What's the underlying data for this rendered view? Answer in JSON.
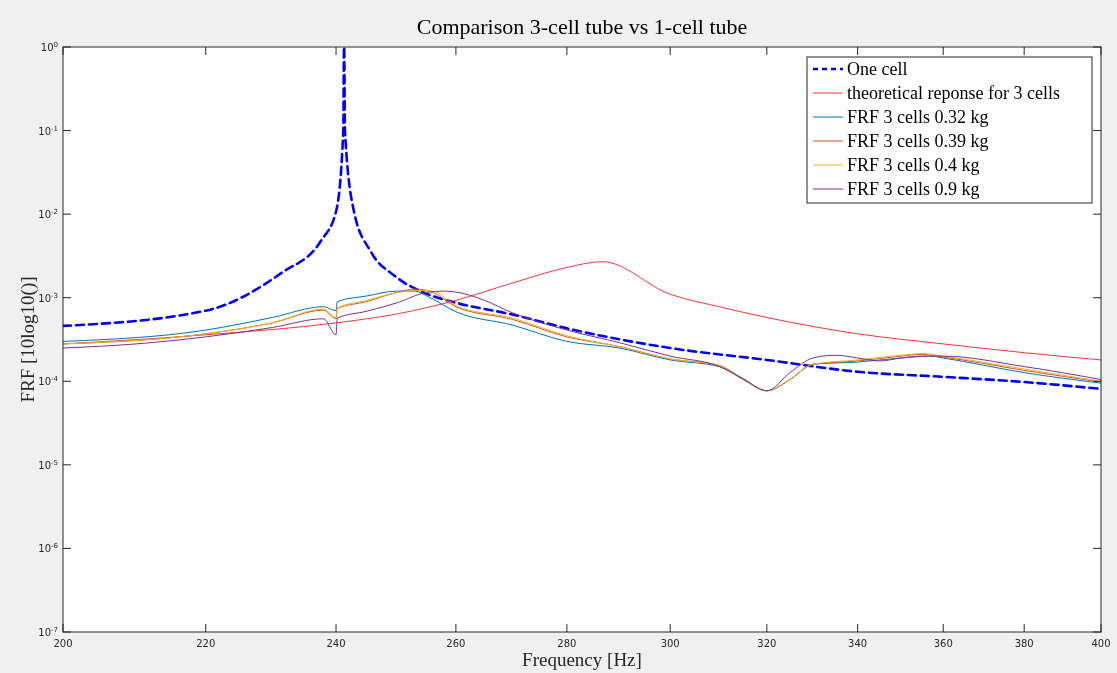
{
  "chart_data": {
    "type": "line",
    "title": "Comparison 3-cell tube vs 1-cell tube",
    "xlabel": "Frequency [Hz]",
    "ylabel": "FRF [10log10()]",
    "log": "xy",
    "legend": "top right",
    "grid": false,
    "xlim": [
      200,
      400
    ],
    "xticks": [
      200,
      220,
      240,
      260,
      280,
      300,
      320,
      340,
      360,
      380,
      400
    ],
    "ylim": [
      1e-07,
      1
    ],
    "yticks": [
      {
        "value": 1e-07,
        "label": "10$^{-7}$"
      },
      {
        "value": 1e-06,
        "label": "10$^{-6}$"
      },
      {
        "value": 1e-05,
        "label": "10$^{-5}$"
      },
      {
        "value": 0.0001,
        "label": "10$^{-4}$"
      },
      {
        "value": 0.001,
        "label": "10$^{-3}$"
      },
      {
        "value": 0.01,
        "label": "10$^{-2}$"
      },
      {
        "value": 0.1,
        "label": "10$^{-1}$"
      },
      {
        "value": 1,
        "label": "10$^{0}$"
      }
    ],
    "series": [
      {
        "name": "One cell",
        "color": "#0000ff",
        "line_style": "dashed",
        "x": [
          200,
          220,
          231.5,
          237.6,
          240,
          241.17,
          241.28,
          241.31,
          241.43,
          242.9,
          245.6,
          249.7,
          255.2,
          260,
          270,
          280,
          300,
          320,
          340,
          360,
          380,
          400
        ],
        "values": [
          0.00046,
          0.0007,
          0.002,
          0.0048,
          0.0107,
          0.1,
          1,
          1,
          0.1,
          0.0107,
          0.0036,
          0.0018,
          0.0011,
          0.00087,
          0.00063,
          0.00043,
          0.00025,
          0.00018,
          0.00013,
          0.000113,
          9.8e-05,
          8.1e-05
        ]
      },
      {
        "name": "theoretical reponse for 3 cells",
        "color": "#ff3333",
        "line_style": "solid",
        "x": [
          200,
          220,
          240,
          250,
          260,
          270,
          280,
          286.7,
          300,
          310,
          320,
          340,
          360,
          380,
          400
        ],
        "values": [
          0.00028,
          0.00036,
          0.0005,
          0.00064,
          0.00093,
          0.0015,
          0.0023,
          0.0027,
          0.0011,
          0.00078,
          0.00058,
          0.00037,
          0.00028,
          0.00022,
          0.00018
        ]
      },
      {
        "name": "FRF 3 cells 0.32 kg",
        "color": "#0072bd",
        "line_style": "solid",
        "x": [
          200,
          220,
          230,
          238,
          240,
          240.2,
          245,
          250,
          253,
          255,
          260,
          270,
          280,
          290,
          300,
          310,
          315,
          320,
          325,
          330,
          340,
          350,
          357,
          360,
          380,
          400
        ],
        "values": [
          0.0003,
          0.00041,
          0.00058,
          0.00078,
          0.0007,
          0.0009,
          0.00105,
          0.0012,
          0.0012,
          0.00105,
          0.00068,
          0.00047,
          0.0003,
          0.00025,
          0.00018,
          0.00015,
          0.000105,
          7.7e-05,
          0.000105,
          0.00016,
          0.00017,
          0.00019,
          0.0002,
          0.00019,
          0.000127,
          9.5e-05
        ]
      },
      {
        "name": "FRF 3 cells 0.39 kg",
        "color": "#d95319",
        "line_style": "solid",
        "x": [
          200,
          220,
          230,
          238,
          240,
          240.2,
          245,
          250,
          253,
          256,
          260,
          270,
          280,
          290,
          300,
          310,
          315,
          320,
          325,
          330,
          340,
          350,
          355,
          360,
          380,
          400
        ],
        "values": [
          0.00028,
          0.00037,
          0.0005,
          0.00071,
          0.00056,
          0.00074,
          0.0009,
          0.00116,
          0.00127,
          0.00116,
          0.00078,
          0.00055,
          0.00034,
          0.00026,
          0.000185,
          0.000155,
          0.000107,
          7.7e-05,
          0.000105,
          0.00016,
          0.000175,
          0.0002,
          0.00021,
          0.000195,
          0.000135,
          9.8e-05
        ]
      },
      {
        "name": "FRF 3 cells 0.4 kg",
        "color": "#edb120",
        "line_style": "solid",
        "x": [
          200,
          220,
          230,
          238,
          240,
          240.2,
          245,
          250,
          253,
          256,
          260,
          270,
          280,
          290,
          300,
          310,
          315,
          320,
          325,
          330,
          340,
          350,
          355,
          360,
          380,
          400
        ],
        "values": [
          0.00028,
          0.00037,
          0.0005,
          0.00073,
          0.00058,
          0.00075,
          0.00093,
          0.00115,
          0.00122,
          0.0012,
          0.0008,
          0.00057,
          0.00035,
          0.00026,
          0.000185,
          0.000155,
          0.000108,
          7.7e-05,
          0.000105,
          0.00016,
          0.00018,
          0.000205,
          0.000215,
          0.0002,
          0.00014,
          0.0001
        ]
      },
      {
        "name": "FRF 3 cells 0.9 kg",
        "color": "#7e2f8e",
        "line_style": "solid",
        "x": [
          200,
          210,
          220,
          230,
          238,
          240,
          240.2,
          245,
          250,
          255,
          258,
          260,
          265,
          270,
          280,
          290,
          300,
          310,
          315,
          320,
          325,
          330,
          335,
          340,
          345,
          350,
          355,
          360,
          380,
          400
        ],
        "values": [
          0.00025,
          0.00028,
          0.00034,
          0.00044,
          0.00056,
          0.00036,
          0.00057,
          0.00069,
          0.00087,
          0.00116,
          0.0012,
          0.00117,
          0.00093,
          0.00066,
          0.00041,
          0.00029,
          0.0002,
          0.00015,
          0.000107,
          7.7e-05,
          0.000127,
          0.00019,
          0.000205,
          0.00019,
          0.000175,
          0.00019,
          0.0002,
          0.0002,
          0.00015,
          0.000105
        ]
      }
    ]
  }
}
